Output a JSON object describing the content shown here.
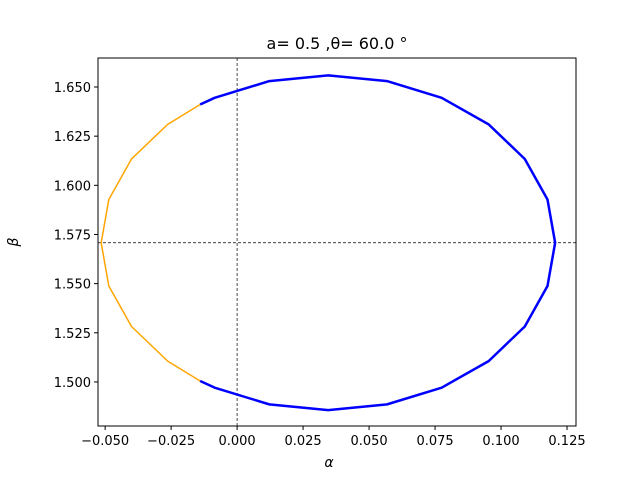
{
  "chart_data": {
    "type": "line",
    "title": "a= 0.5 ,θ= 60.0 °",
    "x_label": "α",
    "y_label": "β",
    "xlim": [
      -0.0527,
      0.1284
    ],
    "ylim": [
      1.4776,
      1.66475
    ],
    "xticks": [
      {
        "value": -0.05,
        "label": "−0.050"
      },
      {
        "value": -0.025,
        "label": "−0.025"
      },
      {
        "value": 0,
        "label": "0.000"
      },
      {
        "value": 0.025,
        "label": "0.025"
      },
      {
        "value": 0.05,
        "label": "0.050"
      },
      {
        "value": 0.075,
        "label": "0.075"
      },
      {
        "value": 0.1,
        "label": "0.100"
      },
      {
        "value": 0.125,
        "label": "0.125"
      }
    ],
    "yticks": [
      {
        "value": 1.5,
        "label": "1.500"
      },
      {
        "value": 1.525,
        "label": "1.525"
      },
      {
        "value": 1.55,
        "label": "1.550"
      },
      {
        "value": 1.575,
        "label": "1.575"
      },
      {
        "value": 1.6,
        "label": "1.600"
      },
      {
        "value": 1.625,
        "label": "1.625"
      },
      {
        "value": 1.65,
        "label": "1.650"
      }
    ],
    "reference_lines": {
      "x": 0,
      "y": 1.5708
    },
    "series": [
      {
        "color": "orange",
        "width": 1.5,
        "x": [
          -0.014,
          -0.0263,
          -0.04,
          -0.0486,
          -0.0515,
          -0.0486,
          -0.04,
          -0.0263,
          -0.014
        ],
        "y": [
          1.6411,
          1.631,
          1.6134,
          1.5928,
          1.5708,
          1.5488,
          1.5282,
          1.5106,
          1.5005
        ]
      },
      {
        "color": "blue",
        "width": 2.5,
        "x": [
          -0.014,
          -0.0085,
          0.0122,
          0.0345,
          0.0568,
          0.0775,
          0.0953,
          0.109,
          0.1176,
          0.1205,
          0.1176,
          0.109,
          0.0953,
          0.0775,
          0.0568,
          0.0345,
          0.0122,
          -0.0085,
          -0.014
        ],
        "y": [
          1.5005,
          1.4971,
          1.4886,
          1.4857,
          1.4886,
          1.4971,
          1.5106,
          1.5282,
          1.5488,
          1.5708,
          1.5928,
          1.6134,
          1.631,
          1.6445,
          1.653,
          1.6559,
          1.653,
          1.6445,
          1.6411
        ]
      }
    ]
  }
}
